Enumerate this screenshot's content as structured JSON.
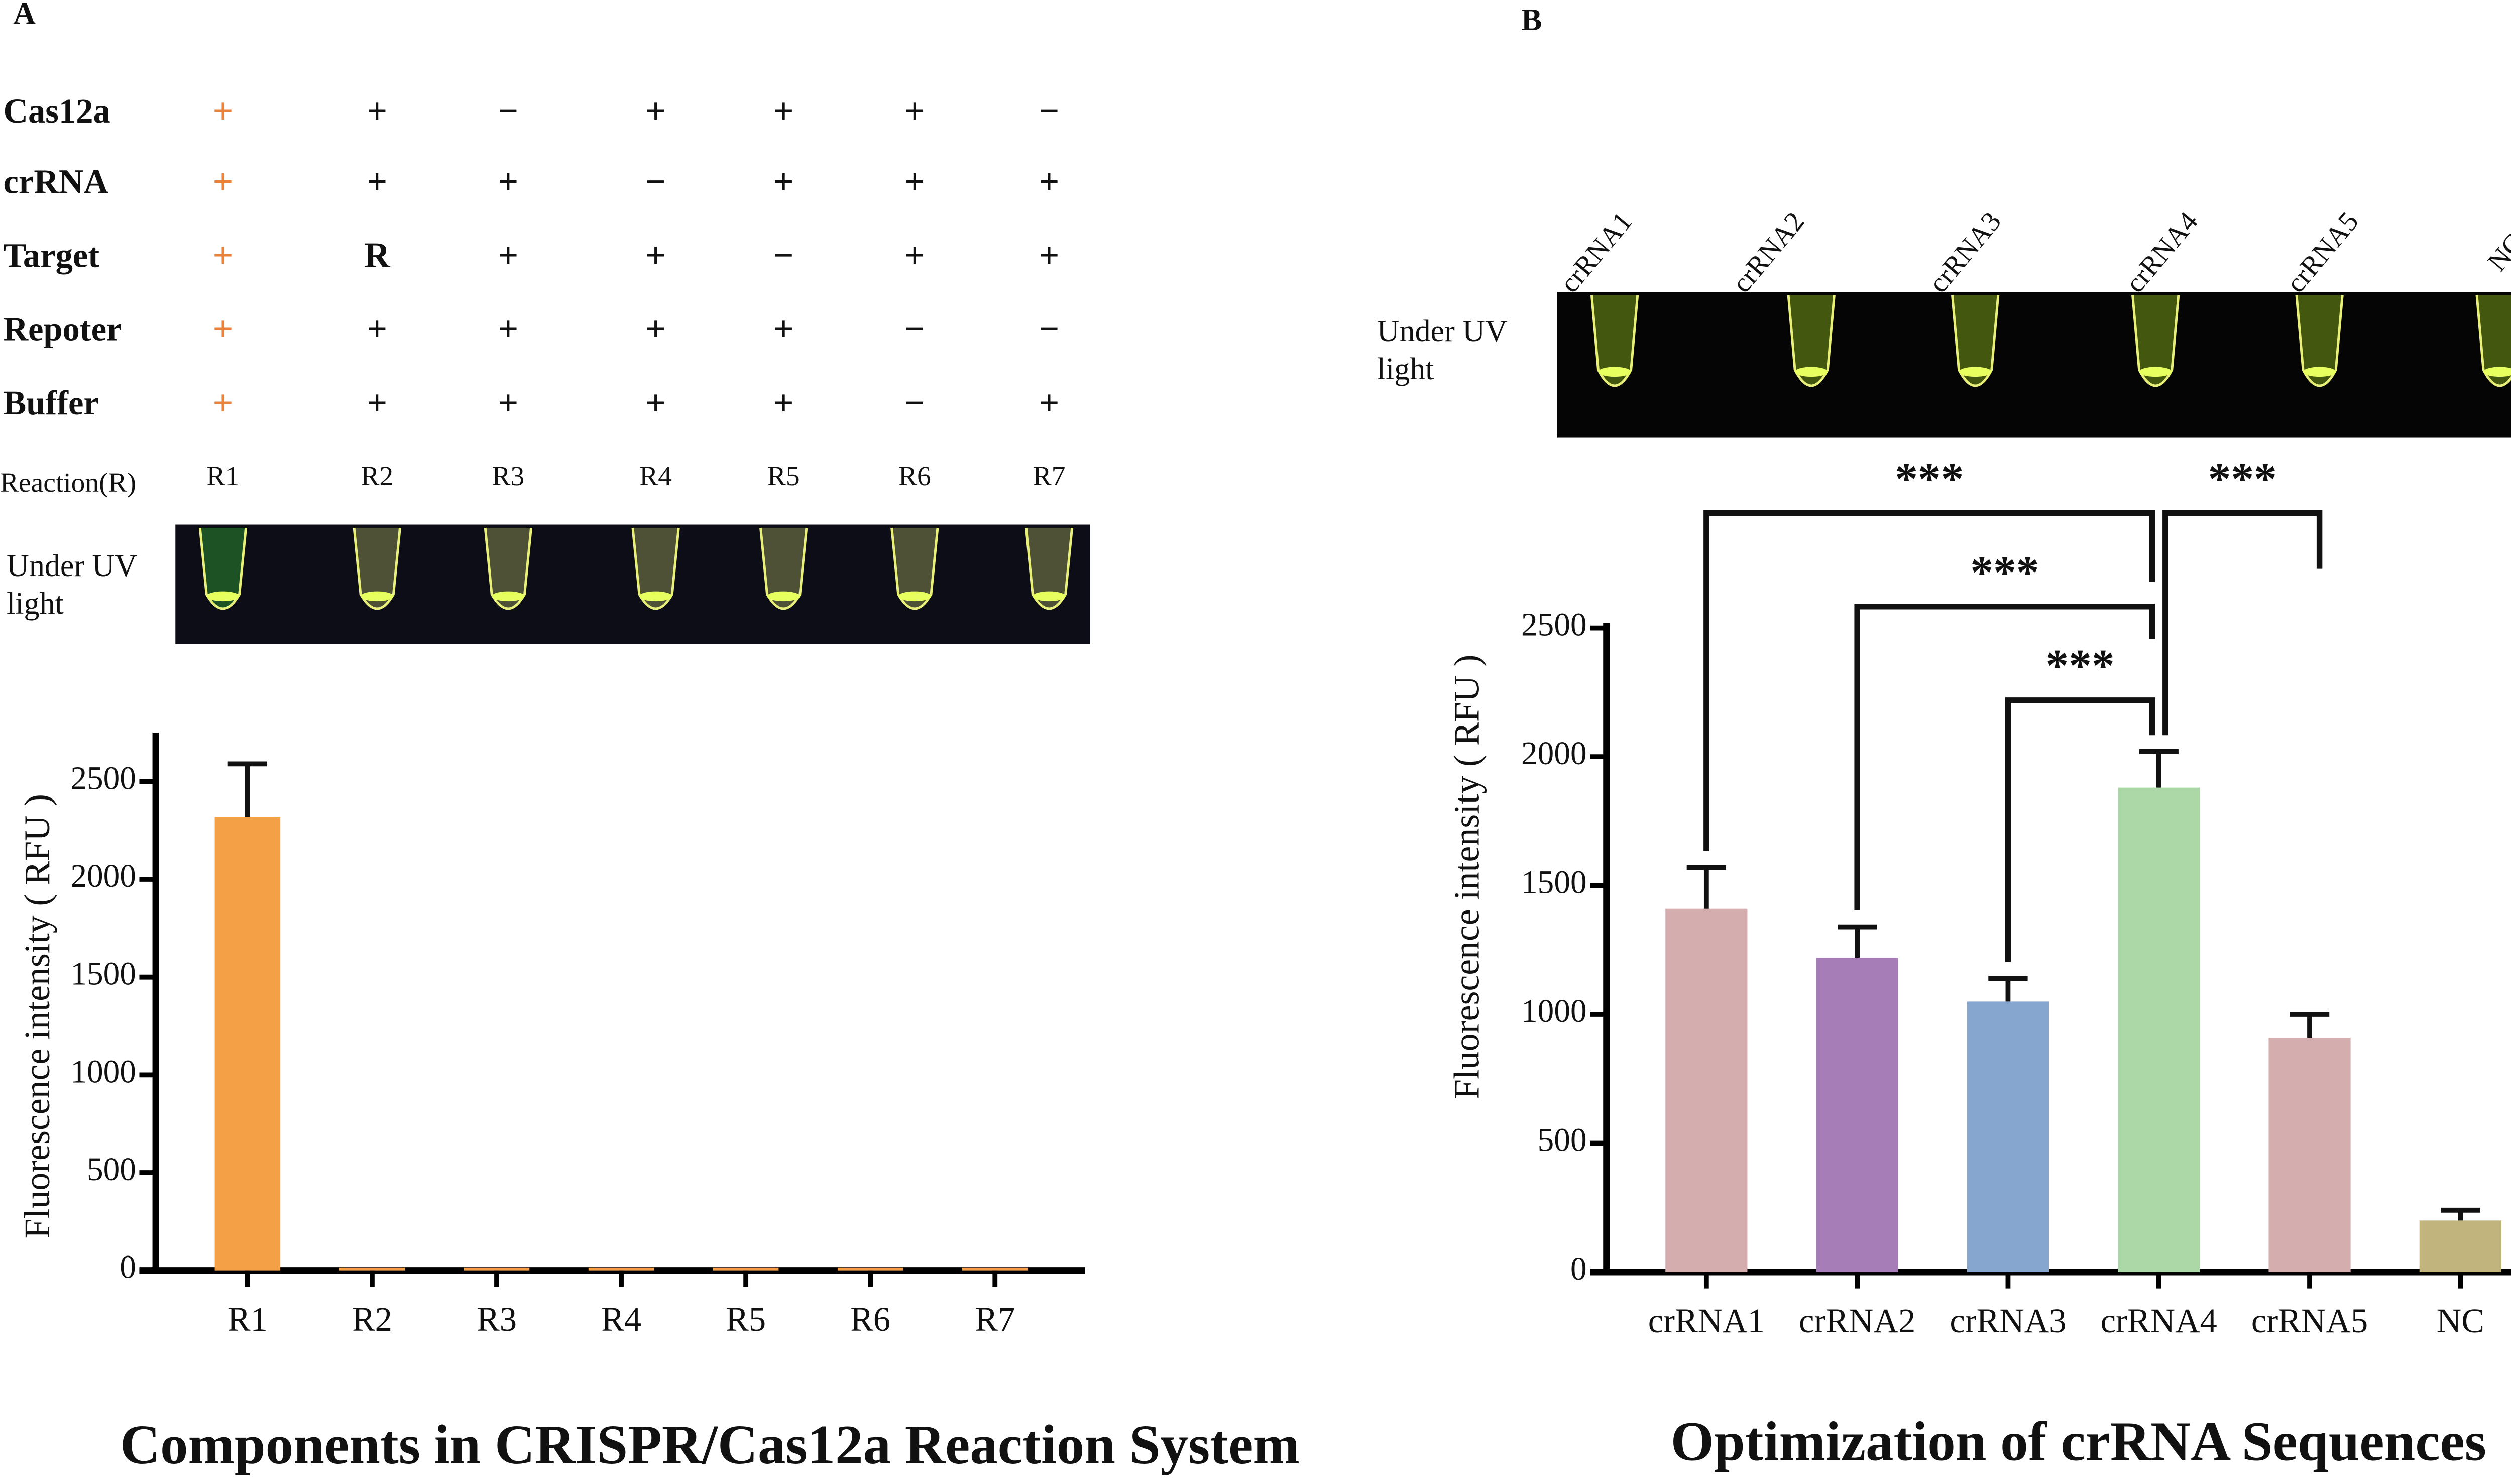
{
  "chart_data": [
    {
      "type": "bar",
      "panel": "A",
      "title": "Components in CRISPR/Cas12a Reaction System",
      "ylabel": "Fluorescence intensity ( RFU )",
      "categories": [
        "R1",
        "R2",
        "R3",
        "R4",
        "R5",
        "R6",
        "R7"
      ],
      "values": [
        2320,
        15,
        15,
        15,
        15,
        15,
        15
      ],
      "errors": [
        270,
        0,
        0,
        0,
        0,
        0,
        0
      ],
      "color": "#f4a046",
      "ylim": [
        0,
        2750
      ],
      "yticks": [
        0,
        500,
        1000,
        1500,
        2000,
        2500
      ],
      "image_label_lines": [
        "Under UV",
        "light"
      ],
      "table": {
        "rows": [
          {
            "label": "Cas12a",
            "cells": [
              "+",
              "+",
              "−",
              "+",
              "+",
              "+",
              "−"
            ]
          },
          {
            "label": "crRNA",
            "cells": [
              "+",
              "+",
              "+",
              "−",
              "+",
              "+",
              "+"
            ]
          },
          {
            "label": "Target",
            "cells": [
              "+",
              "R",
              "+",
              "+",
              "−",
              "+",
              "+"
            ]
          },
          {
            "label": "Repoter",
            "cells": [
              "+",
              "+",
              "+",
              "+",
              "+",
              "−",
              "−"
            ]
          },
          {
            "label": "Buffer",
            "cells": [
              "+",
              "+",
              "+",
              "+",
              "+",
              "−",
              "+"
            ]
          }
        ],
        "header": {
          "label": "Reaction(R)",
          "cells": [
            "R1",
            "R2",
            "R3",
            "R4",
            "R5",
            "R6",
            "R7"
          ]
        },
        "highlight_color": "#e8823a"
      }
    },
    {
      "type": "bar",
      "panel": "B",
      "title": "Optimization of crRNA Sequences",
      "ylabel": "Fluorescence intensity ( RFU )",
      "categories": [
        "crRNA1",
        "crRNA2",
        "crRNA3",
        "crRNA4",
        "crRNA5",
        "NC"
      ],
      "values": [
        1410,
        1220,
        1050,
        1880,
        910,
        200
      ],
      "errors": [
        160,
        120,
        90,
        140,
        90,
        40
      ],
      "colors": [
        "#d4aeae",
        "#a77db7",
        "#87a6cf",
        "#acd8a8",
        "#d4aeae",
        "#c1b57d"
      ],
      "ylim": [
        0,
        2520
      ],
      "yticks": [
        0,
        500,
        1000,
        1500,
        2000,
        2500
      ],
      "image_label_lines": [
        "Under UV",
        "light"
      ],
      "comparisons": [
        {
          "pair": [
            0,
            3
          ],
          "label": "***"
        },
        {
          "pair": [
            3,
            4
          ],
          "label": "***"
        },
        {
          "pair": [
            1,
            3
          ],
          "label": "***"
        },
        {
          "pair": [
            2,
            3
          ],
          "label": "***"
        }
      ]
    }
  ]
}
